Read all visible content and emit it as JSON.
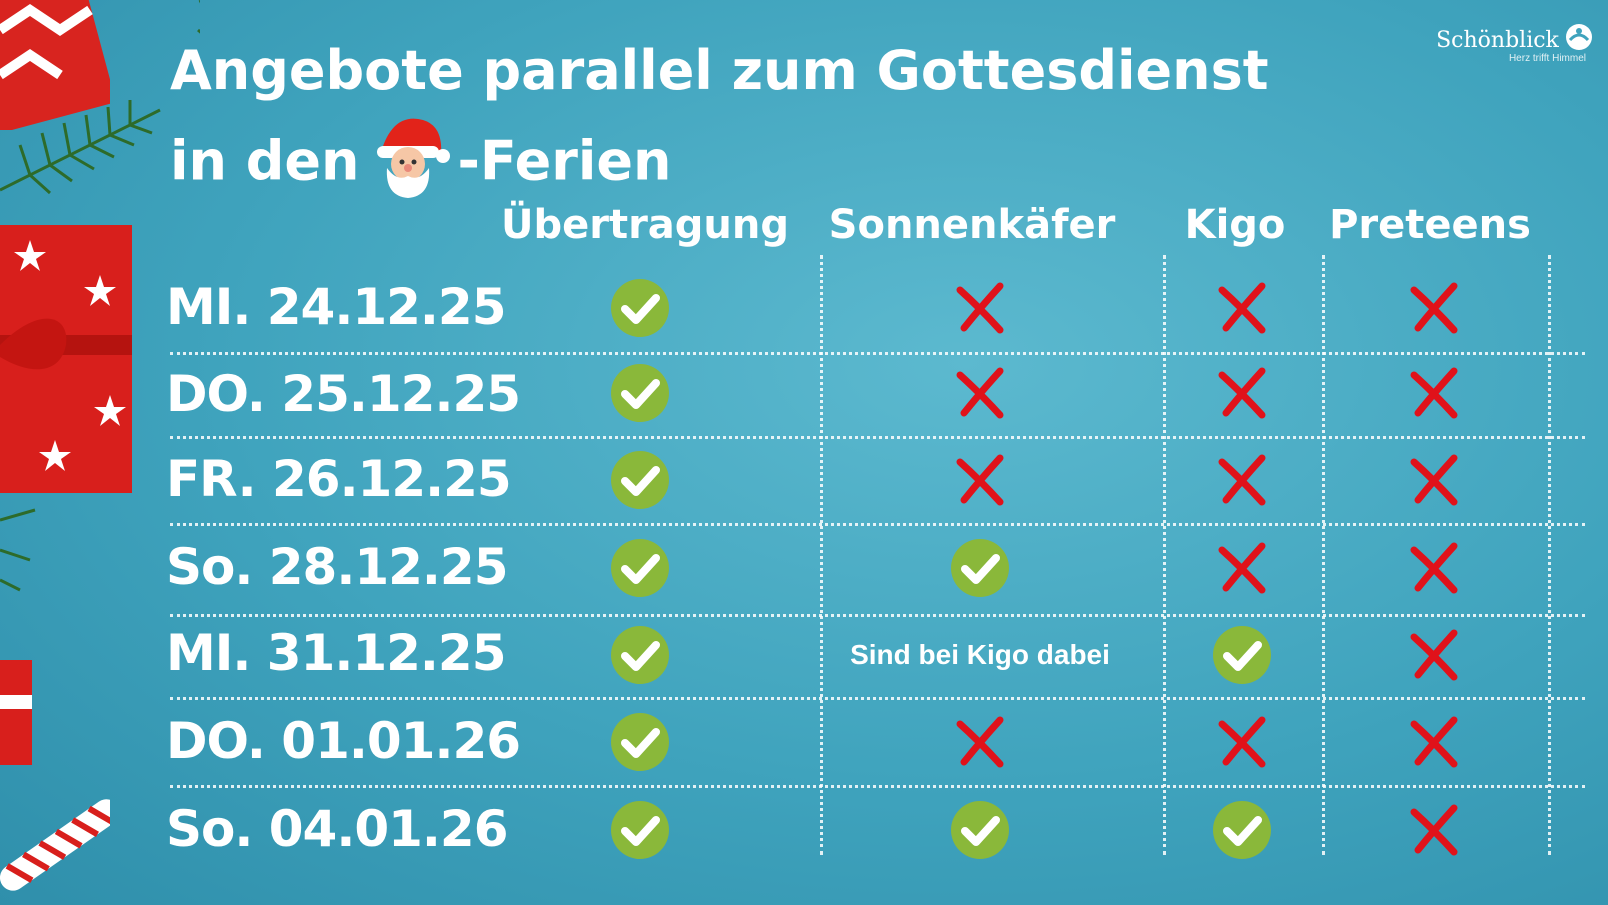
{
  "title_line1": "Angebote parallel zum Gottesdienst",
  "title_line2_prefix": "in den",
  "title_line2_suffix": "-Ferien",
  "logo": {
    "name": "Schönblick",
    "tagline": "Herz trifft Himmel"
  },
  "columns": [
    "Übertragung",
    "Sonnenkäfer",
    "Kigo",
    "Preteens"
  ],
  "rows": [
    {
      "label": "MI. 24.12.25",
      "cells": [
        "check",
        "cross",
        "cross",
        "cross"
      ]
    },
    {
      "label": "DO. 25.12.25",
      "cells": [
        "check",
        "cross",
        "cross",
        "cross"
      ]
    },
    {
      "label": "FR. 26.12.25",
      "cells": [
        "check",
        "cross",
        "cross",
        "cross"
      ]
    },
    {
      "label": "So. 28.12.25",
      "cells": [
        "check",
        "check",
        "cross",
        "cross"
      ]
    },
    {
      "label": "MI. 31.12.25",
      "cells": [
        "check",
        "text",
        "check",
        "cross"
      ],
      "note": "Sind bei Kigo dabei"
    },
    {
      "label": "DO. 01.01.26",
      "cells": [
        "check",
        "cross",
        "cross",
        "cross"
      ]
    },
    {
      "label": "So. 04.01.26",
      "cells": [
        "check",
        "check",
        "check",
        "cross"
      ]
    }
  ],
  "colors": {
    "check": "#8ab83a",
    "cross": "#e0121a"
  },
  "icons": [
    "santa-emoji",
    "check-icon",
    "cross-icon",
    "gift-decoration",
    "fir-branch-decoration"
  ]
}
